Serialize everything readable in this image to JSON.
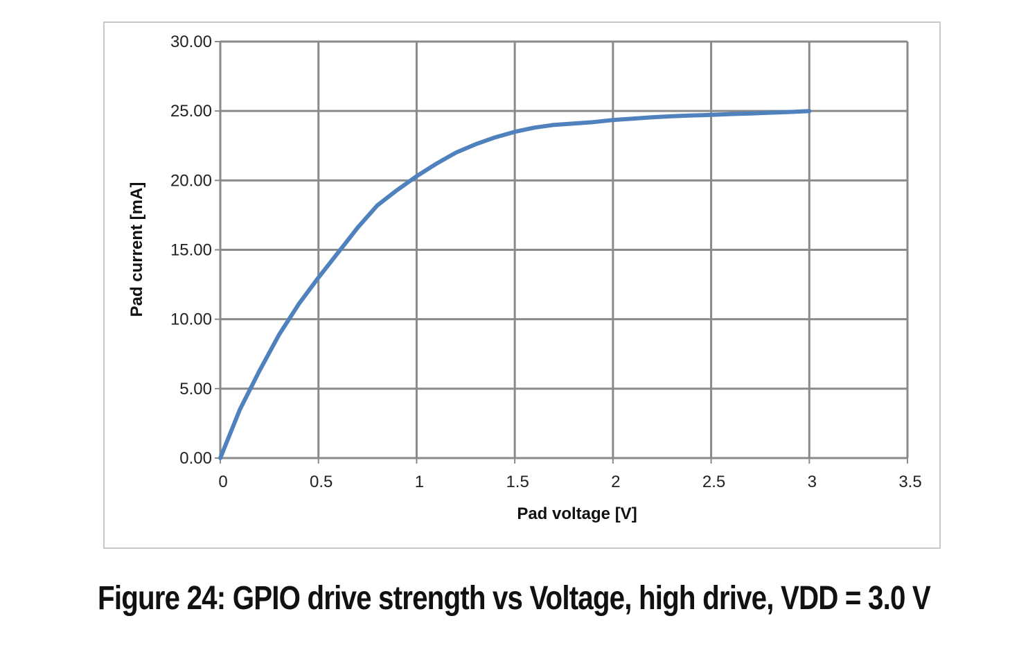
{
  "caption": "Figure 24: GPIO drive strength vs Voltage, high drive, VDD = 3.0 V",
  "chart_data": {
    "type": "line",
    "title": "",
    "xlabel": "Pad voltage [V]",
    "ylabel": "Pad current [mA]",
    "xlim": [
      0,
      3.5
    ],
    "ylim": [
      0,
      30
    ],
    "x_ticks": [
      "0",
      "0.5",
      "1",
      "1.5",
      "2",
      "2.5",
      "3",
      "3.5"
    ],
    "y_ticks": [
      "0.00",
      "5.00",
      "10.00",
      "15.00",
      "20.00",
      "25.00",
      "30.00"
    ],
    "grid": true,
    "legend": "none",
    "series": [
      {
        "color": "#4f81bd",
        "x": [
          0,
          0.1,
          0.2,
          0.3,
          0.4,
          0.5,
          0.6,
          0.7,
          0.8,
          0.9,
          1.0,
          1.1,
          1.2,
          1.3,
          1.4,
          1.5,
          1.6,
          1.7,
          1.8,
          1.9,
          2.0,
          2.1,
          2.2,
          2.3,
          2.4,
          2.5,
          2.6,
          2.7,
          2.8,
          2.9,
          3.0
        ],
        "y": [
          0,
          3.5,
          6.3,
          8.9,
          11.1,
          13.0,
          14.8,
          16.6,
          18.2,
          19.3,
          20.3,
          21.2,
          22.0,
          22.6,
          23.1,
          23.5,
          23.8,
          24.0,
          24.1,
          24.2,
          24.35,
          24.45,
          24.55,
          24.62,
          24.68,
          24.72,
          24.78,
          24.82,
          24.88,
          24.93,
          25.0
        ]
      }
    ]
  }
}
